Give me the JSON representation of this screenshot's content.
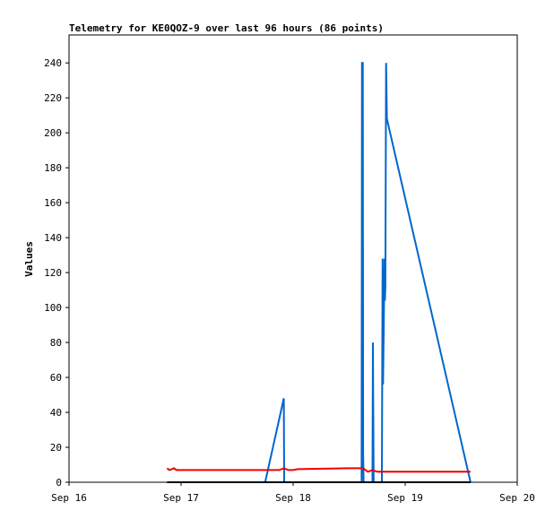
{
  "chart_data": {
    "type": "line",
    "title": "Telemetry for KE0QOZ-9 over last 96 hours (86 points)",
    "xlabel": "",
    "ylabel": "Values",
    "x_tick_labels": [
      "Sep 16",
      "Sep 17",
      "Sep 18",
      "Sep 19",
      "Sep 20"
    ],
    "y_ticks": [
      0,
      20,
      40,
      60,
      80,
      100,
      120,
      140,
      160,
      180,
      200,
      220,
      240
    ],
    "xlim": [
      "2023-09-16T00:00",
      "2023-09-20T00:00"
    ],
    "ylim": [
      0,
      256
    ],
    "grid": false,
    "legend": "none",
    "series": [
      {
        "color": "#0066cc",
        "points": [
          [
            "2023-09-17T18:00",
            0
          ],
          [
            "2023-09-17T22:00",
            48
          ],
          [
            "2023-09-17T22:05",
            0
          ],
          [
            "2023-09-18T14:40",
            0
          ],
          [
            "2023-09-18T14:45",
            240
          ],
          [
            "2023-09-18T14:55",
            240
          ],
          [
            "2023-09-18T15:00",
            16
          ],
          [
            "2023-09-18T15:05",
            0
          ],
          [
            "2023-09-18T17:00",
            0
          ],
          [
            "2023-09-18T17:05",
            80
          ],
          [
            "2023-09-18T17:10",
            40
          ],
          [
            "2023-09-18T17:15",
            0
          ],
          [
            "2023-09-18T19:00",
            0
          ],
          [
            "2023-09-18T19:05",
            64
          ],
          [
            "2023-09-18T19:10",
            128
          ],
          [
            "2023-09-18T19:15",
            56
          ],
          [
            "2023-09-18T19:35",
            128
          ],
          [
            "2023-09-18T19:40",
            104
          ],
          [
            "2023-09-18T19:45",
            112
          ],
          [
            "2023-09-18T19:55",
            240
          ],
          [
            "2023-09-18T20:05",
            208
          ],
          [
            "2023-09-19T14:00",
            0
          ]
        ]
      },
      {
        "color": "#ee0000",
        "points": [
          [
            "2023-09-16T21:00",
            8
          ],
          [
            "2023-09-16T21:30",
            7
          ],
          [
            "2023-09-16T22:30",
            8
          ],
          [
            "2023-09-16T23:00",
            7
          ],
          [
            "2023-09-17T21:00",
            7
          ],
          [
            "2023-09-17T22:00",
            8
          ],
          [
            "2023-09-17T23:00",
            7
          ],
          [
            "2023-09-18T00:00",
            7
          ],
          [
            "2023-09-18T01:00",
            7.5
          ],
          [
            "2023-09-18T12:00",
            8
          ],
          [
            "2023-09-18T15:00",
            8
          ],
          [
            "2023-09-18T16:00",
            6
          ],
          [
            "2023-09-18T17:00",
            7
          ],
          [
            "2023-09-18T18:00",
            6
          ],
          [
            "2023-09-18T20:00",
            6
          ],
          [
            "2023-09-19T14:00",
            6
          ]
        ]
      },
      {
        "color": "#000000",
        "points": [
          [
            "2023-09-16T21:00",
            0
          ],
          [
            "2023-09-19T14:00",
            0
          ]
        ]
      }
    ]
  }
}
